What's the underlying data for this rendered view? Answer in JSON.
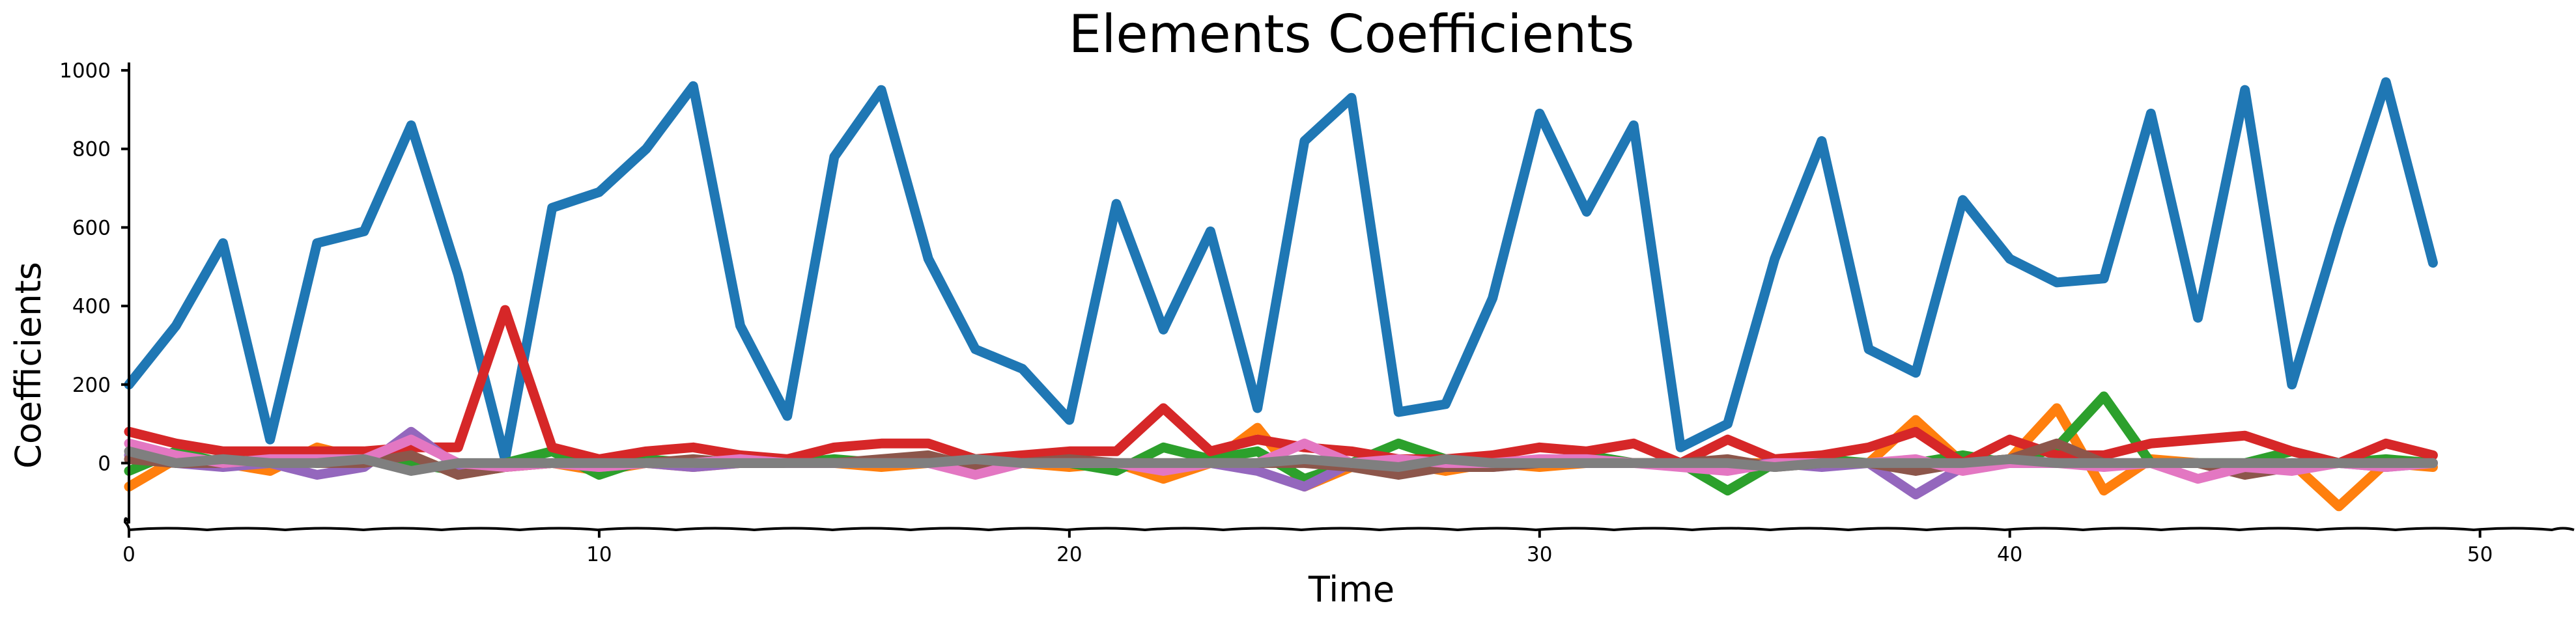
{
  "chart_data": {
    "type": "line",
    "title": "Elements Coefficients",
    "xlabel": "Time",
    "ylabel": "Coefficients",
    "xlim": [
      0,
      52
    ],
    "ylim": [
      -170,
      1020
    ],
    "xticks": [
      0,
      10,
      20,
      30,
      40,
      50
    ],
    "yticks": [
      0,
      200,
      400,
      600,
      800,
      1000
    ],
    "grid": false,
    "legend": "none",
    "x": [
      0,
      1,
      2,
      3,
      4,
      5,
      6,
      7,
      8,
      9,
      10,
      11,
      12,
      13,
      14,
      15,
      16,
      17,
      18,
      19,
      20,
      21,
      22,
      23,
      24,
      25,
      26,
      27,
      28,
      29,
      30,
      31,
      32,
      33,
      34,
      35,
      36,
      37,
      38,
      39,
      40,
      41,
      42,
      43,
      44,
      45,
      46,
      47,
      48,
      49
    ],
    "series": [
      {
        "color": "#1f77b4",
        "values": [
          200,
          350,
          560,
          60,
          560,
          590,
          860,
          480,
          10,
          650,
          690,
          800,
          960,
          350,
          120,
          780,
          950,
          520,
          290,
          240,
          110,
          660,
          340,
          590,
          140,
          820,
          930,
          130,
          150,
          420,
          890,
          640,
          860,
          40,
          100,
          520,
          820,
          290,
          230,
          670,
          520,
          460,
          470,
          890,
          370,
          950,
          200,
          600,
          970,
          510
        ]
      },
      {
        "color": "#ff7f0e",
        "values": [
          -60,
          10,
          0,
          -20,
          40,
          10,
          20,
          -30,
          -10,
          0,
          -20,
          0,
          -10,
          0,
          10,
          0,
          -10,
          0,
          10,
          0,
          -10,
          0,
          -40,
          0,
          90,
          -60,
          -10,
          0,
          -20,
          0,
          -10,
          0,
          0,
          0,
          0,
          0,
          0,
          0,
          110,
          0,
          10,
          140,
          -70,
          10,
          0,
          -20,
          0,
          -110,
          0,
          -10
        ]
      },
      {
        "color": "#2ca02c",
        "values": [
          -20,
          30,
          0,
          10,
          0,
          10,
          0,
          -20,
          0,
          30,
          -30,
          10,
          0,
          0,
          0,
          10,
          0,
          10,
          0,
          10,
          0,
          -20,
          40,
          10,
          30,
          -40,
          0,
          50,
          10,
          0,
          0,
          20,
          0,
          0,
          -70,
          0,
          10,
          0,
          0,
          20,
          0,
          40,
          170,
          0,
          0,
          0,
          30,
          0,
          10,
          0
        ]
      },
      {
        "color": "#d62728",
        "values": [
          80,
          50,
          30,
          30,
          30,
          30,
          40,
          40,
          390,
          40,
          10,
          30,
          40,
          20,
          10,
          40,
          50,
          50,
          10,
          20,
          30,
          30,
          140,
          30,
          60,
          40,
          30,
          10,
          10,
          20,
          40,
          30,
          50,
          0,
          60,
          10,
          20,
          40,
          80,
          0,
          60,
          20,
          20,
          50,
          60,
          70,
          30,
          0,
          50,
          20
        ]
      },
      {
        "color": "#9467bd",
        "values": [
          20,
          0,
          -10,
          0,
          -30,
          -10,
          80,
          -10,
          0,
          0,
          -10,
          0,
          -10,
          0,
          0,
          0,
          0,
          0,
          -10,
          0,
          0,
          0,
          -10,
          0,
          -20,
          -60,
          0,
          0,
          0,
          -10,
          0,
          0,
          0,
          0,
          -10,
          0,
          -10,
          0,
          -80,
          -10,
          0,
          0,
          0,
          0,
          0,
          -10,
          0,
          0,
          -10,
          0
        ]
      },
      {
        "color": "#8c564b",
        "values": [
          10,
          0,
          0,
          10,
          0,
          0,
          20,
          -30,
          -10,
          0,
          0,
          0,
          10,
          0,
          0,
          0,
          10,
          20,
          -10,
          0,
          10,
          0,
          0,
          0,
          0,
          0,
          -10,
          -30,
          -10,
          -10,
          0,
          10,
          0,
          0,
          10,
          -10,
          0,
          0,
          -20,
          0,
          10,
          50,
          0,
          0,
          0,
          -30,
          -10,
          0,
          0,
          0
        ]
      },
      {
        "color": "#e377c2",
        "values": [
          50,
          20,
          0,
          10,
          10,
          10,
          60,
          0,
          -10,
          0,
          -10,
          0,
          0,
          10,
          0,
          0,
          0,
          0,
          -30,
          0,
          0,
          0,
          -20,
          0,
          0,
          50,
          0,
          10,
          0,
          0,
          10,
          10,
          0,
          -10,
          -20,
          0,
          0,
          0,
          10,
          -20,
          0,
          0,
          -10,
          0,
          -40,
          -10,
          -20,
          0,
          -10,
          0
        ]
      },
      {
        "color": "#7f7f7f",
        "values": [
          30,
          0,
          10,
          0,
          0,
          10,
          -20,
          0,
          0,
          0,
          0,
          0,
          0,
          0,
          0,
          0,
          0,
          0,
          10,
          0,
          0,
          0,
          0,
          0,
          0,
          10,
          0,
          -10,
          10,
          0,
          0,
          0,
          0,
          0,
          0,
          -10,
          0,
          0,
          0,
          0,
          10,
          0,
          0,
          0,
          0,
          0,
          0,
          0,
          0,
          0
        ]
      }
    ]
  }
}
